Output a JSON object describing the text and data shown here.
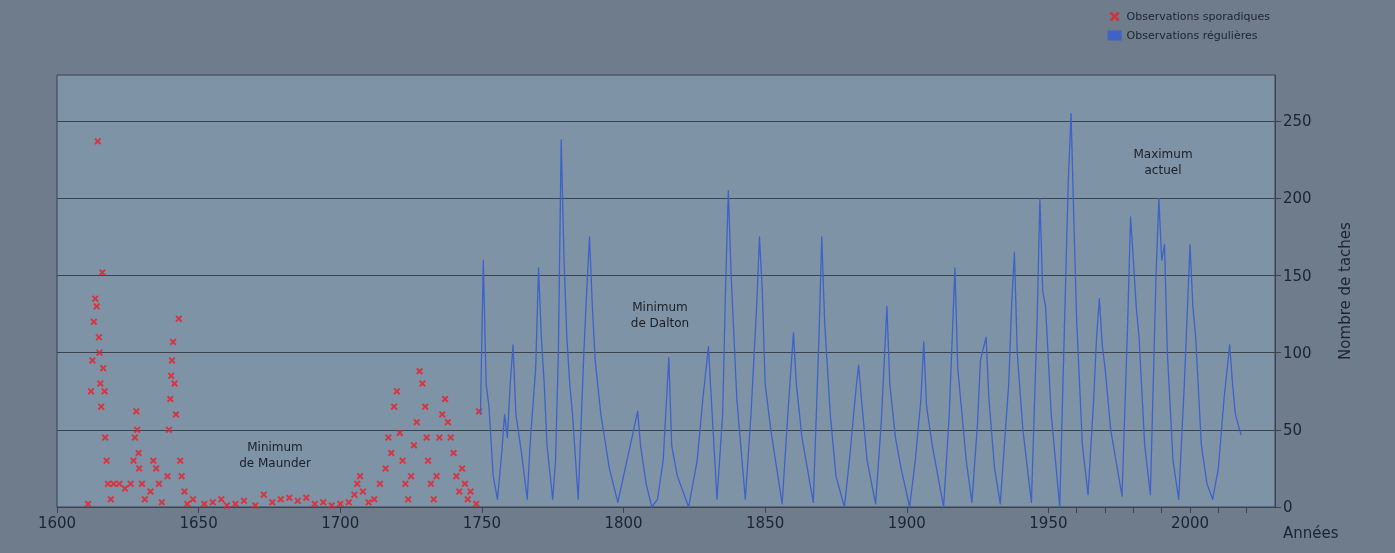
{
  "chart_data": {
    "type": "line",
    "xlabel": "Années",
    "ylabel": "Nombre de taches",
    "xlim": [
      1600,
      2030
    ],
    "ylim": [
      0,
      280
    ],
    "xticks": [
      1600,
      1650,
      1700,
      1750,
      1800,
      1850,
      1900,
      1950,
      {
        "value": 1960,
        "label": null
      },
      {
        "value": 1970,
        "label": null
      },
      {
        "value": 1980,
        "label": null
      },
      {
        "value": 1990,
        "label": null
      },
      2000,
      {
        "value": 2010,
        "label": null
      },
      {
        "value": 2020,
        "label": null
      }
    ],
    "yticks": [
      0,
      50,
      100,
      150,
      200,
      250
    ],
    "grid": "y",
    "legend": "top right",
    "annotations": [
      "Minimum de Maunder",
      "Minimum de Dalton",
      "Maximum actuel"
    ],
    "series": [
      {
        "name": "Observations sporadiques",
        "type": "scatter",
        "marker": "cross",
        "color": "#e8202a",
        "x": [
          1611,
          1612,
          1612.5,
          1613,
          1613.5,
          1614,
          1614.4,
          1614.8,
          1615,
          1615.3,
          1615.6,
          1616,
          1616.3,
          1616.8,
          1617,
          1617.5,
          1618,
          1619,
          1620,
          1622,
          1624,
          1626,
          1627,
          1627.5,
          1628,
          1628.3,
          1628.8,
          1629,
          1630,
          1631,
          1633,
          1634,
          1635,
          1636,
          1637,
          1639,
          1639.5,
          1640,
          1640.3,
          1640.6,
          1641,
          1641.5,
          1642,
          1643,
          1643.5,
          1644,
          1645,
          1646,
          1648,
          1652,
          1655,
          1658,
          1660,
          1663,
          1666,
          1670,
          1673,
          1676,
          1679,
          1682,
          1685,
          1688,
          1691,
          1694,
          1697,
          1700,
          1703,
          1705,
          1706,
          1707,
          1708,
          1710,
          1712,
          1714,
          1716,
          1717,
          1718,
          1719,
          1720,
          1721,
          1722,
          1723,
          1724,
          1725,
          1726,
          1727,
          1728,
          1729,
          1730,
          1730.5,
          1731,
          1732,
          1733,
          1734,
          1735,
          1736,
          1737,
          1738,
          1739,
          1740,
          1741,
          1742,
          1743,
          1744,
          1745,
          1746,
          1748,
          1749
        ],
        "values": [
          2,
          75,
          95,
          120,
          135,
          130,
          237,
          110,
          100,
          80,
          65,
          152,
          90,
          75,
          45,
          30,
          15,
          5,
          15,
          15,
          12,
          15,
          30,
          45,
          62,
          50,
          35,
          25,
          15,
          5,
          10,
          30,
          25,
          15,
          3,
          20,
          50,
          70,
          85,
          95,
          107,
          80,
          60,
          122,
          30,
          20,
          10,
          2,
          5,
          2,
          3,
          5,
          1,
          2,
          4,
          1,
          8,
          3,
          5,
          6,
          4,
          6,
          2,
          3,
          1,
          2,
          3,
          8,
          15,
          20,
          10,
          3,
          5,
          15,
          25,
          45,
          35,
          65,
          75,
          48,
          30,
          15,
          5,
          20,
          40,
          55,
          88,
          80,
          65,
          45,
          30,
          15,
          5,
          20,
          45,
          60,
          70,
          55,
          45,
          35,
          20,
          10,
          25,
          15,
          5,
          10,
          2,
          62
        ]
      },
      {
        "name": "Observations régulières",
        "marker": "none",
        "line_style": "solid",
        "color": "#3d62c8",
        "x": [
          1749.5,
          1750.5,
          1751.5,
          1752.5,
          1754,
          1755.5,
          1757,
          1758,
          1759,
          1760,
          1761,
          1762,
          1764,
          1766,
          1767,
          1769,
          1770,
          1771,
          1772,
          1773,
          1775,
          1776,
          1777,
          1778,
          1779,
          1780,
          1781,
          1782,
          1784,
          1786,
          1787,
          1788,
          1789,
          1790,
          1792,
          1795,
          1798,
          1800,
          1803,
          1805,
          1806,
          1808,
          1810,
          1812,
          1814,
          1816,
          1817,
          1819,
          1823,
          1826,
          1828,
          1830,
          1831,
          1833,
          1835,
          1836,
          1837,
          1838,
          1839,
          1840,
          1843,
          1845,
          1847,
          1848,
          1849,
          1850,
          1852,
          1856,
          1858,
          1860,
          1861,
          1863,
          1867,
          1869,
          1870,
          1871,
          1873,
          1875,
          1878,
          1880,
          1882,
          1883,
          1884,
          1886,
          1889,
          1891,
          1893,
          1894,
          1896,
          1898,
          1901,
          1903,
          1905,
          1906,
          1907,
          1909,
          1913,
          1915,
          1917,
          1918,
          1919,
          1921,
          1923,
          1925,
          1926,
          1928,
          1929,
          1931,
          1933,
          1936,
          1937,
          1938,
          1939,
          1941,
          1944,
          1946,
          1947,
          1948,
          1949,
          1951,
          1954,
          1956,
          1957,
          1958,
          1959,
          1960,
          1962,
          1964,
          1966,
          1967,
          1968,
          1969,
          1970,
          1972,
          1976,
          1978,
          1979,
          1980,
          1981,
          1982,
          1984,
          1986,
          1988,
          1989,
          1990,
          1991,
          1992,
          1994,
          1996,
          1998,
          2000,
          2001,
          2002,
          2004,
          2006,
          2008,
          2010,
          2012,
          2014,
          2015,
          2016,
          2018
        ],
        "values": [
          60,
          160,
          80,
          65,
          20,
          5,
          35,
          60,
          45,
          80,
          105,
          60,
          35,
          5,
          40,
          90,
          155,
          110,
          80,
          40,
          5,
          30,
          100,
          238,
          160,
          110,
          80,
          60,
          5,
          100,
          140,
          175,
          130,
          95,
          60,
          25,
          3,
          20,
          45,
          62,
          40,
          15,
          0,
          5,
          30,
          97,
          40,
          20,
          0,
          30,
          70,
          104,
          70,
          5,
          60,
          140,
          205,
          150,
          110,
          70,
          5,
          60,
          130,
          175,
          140,
          80,
          50,
          2,
          60,
          113,
          80,
          45,
          3,
          110,
          175,
          120,
          60,
          20,
          0,
          35,
          75,
          92,
          70,
          30,
          2,
          55,
          130,
          80,
          45,
          25,
          0,
          30,
          70,
          107,
          65,
          40,
          0,
          60,
          155,
          90,
          70,
          30,
          3,
          55,
          95,
          110,
          70,
          25,
          2,
          80,
          130,
          165,
          100,
          50,
          3,
          120,
          200,
          140,
          130,
          60,
          0,
          140,
          210,
          255,
          185,
          120,
          40,
          8,
          70,
          110,
          135,
          105,
          90,
          50,
          7,
          120,
          188,
          160,
          130,
          110,
          40,
          8,
          150,
          200,
          160,
          170,
          100,
          30,
          5,
          80,
          170,
          130,
          110,
          40,
          15,
          5,
          25,
          70,
          105,
          80,
          60,
          47
        ]
      }
    ]
  }
}
